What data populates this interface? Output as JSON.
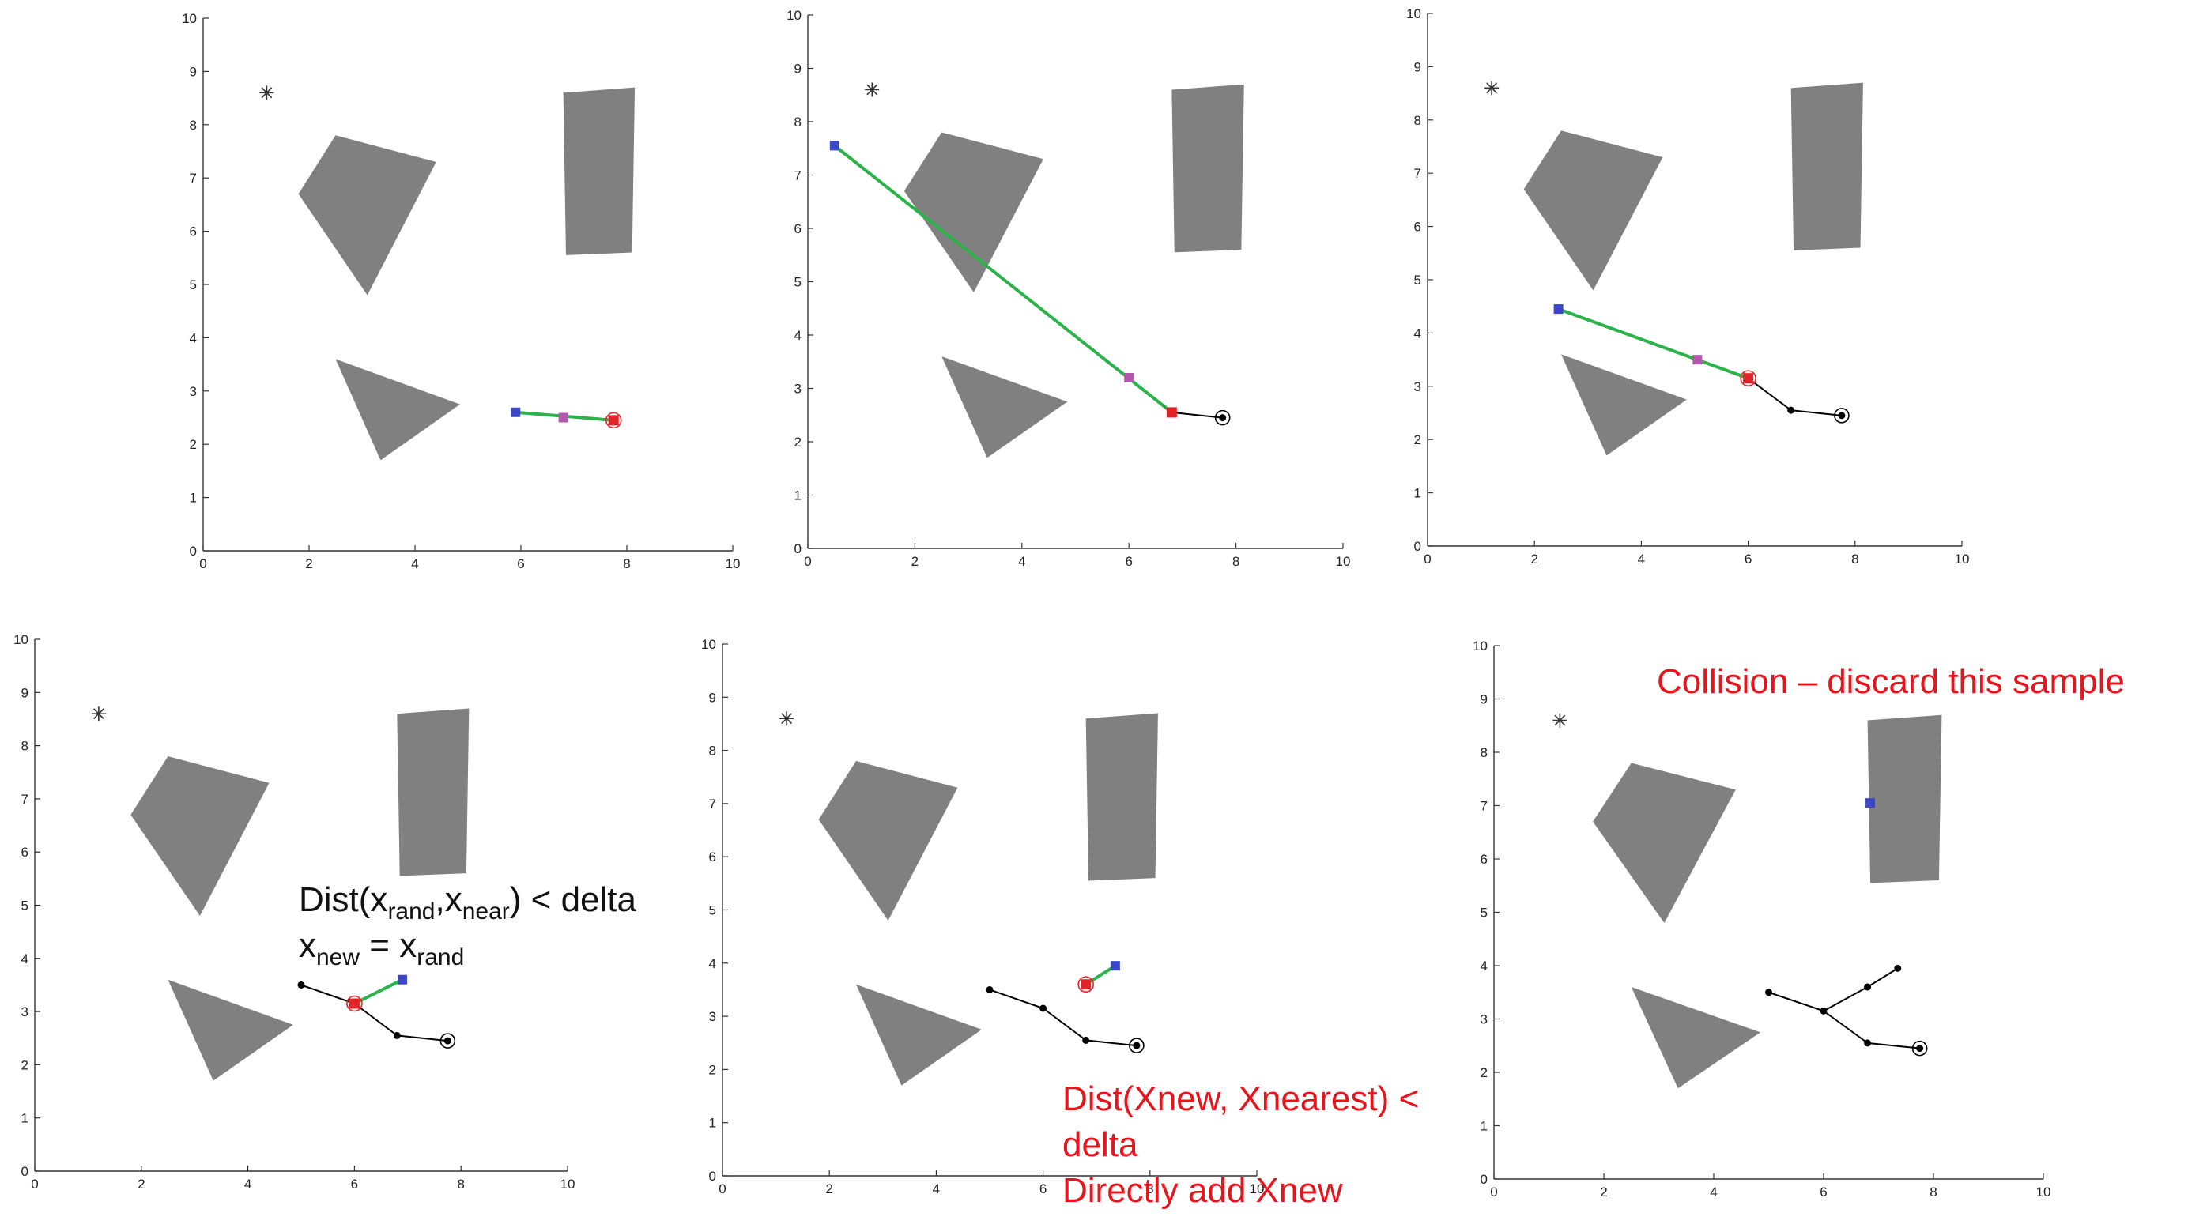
{
  "colors": {
    "obstacle": "#808080",
    "tree_edge": "#000000",
    "green_edge": "#2bb34a",
    "rand_marker": "#3b47c7",
    "new_marker": "#b457b0",
    "near_marker": "#e0252a",
    "note_red": "#e8141b",
    "note_black": "#111111"
  },
  "axes": {
    "xlim": [
      0,
      10
    ],
    "ylim": [
      0,
      10
    ],
    "x_ticks": [
      "0",
      "2",
      "4",
      "6",
      "8",
      "10"
    ],
    "y_ticks": [
      "0",
      "1",
      "2",
      "3",
      "4",
      "5",
      "6",
      "7",
      "8",
      "9",
      "10"
    ]
  },
  "obstacles": [
    [
      [
        2.5,
        7.8
      ],
      [
        4.4,
        7.3
      ],
      [
        3.1,
        4.8
      ],
      [
        1.8,
        6.7
      ]
    ],
    [
      [
        6.8,
        8.6
      ],
      [
        8.15,
        8.7
      ],
      [
        8.1,
        5.6
      ],
      [
        6.85,
        5.55
      ]
    ],
    [
      [
        2.5,
        3.6
      ],
      [
        4.85,
        2.75
      ],
      [
        3.35,
        1.7
      ]
    ]
  ],
  "goal_marker": [
    1.2,
    8.6
  ],
  "panels": [
    {
      "tree_edges": [],
      "tree_nodes": [],
      "start": [
        7.75,
        2.45
      ],
      "green_segments": [
        [
          [
            5.9,
            2.6
          ],
          [
            7.75,
            2.45
          ]
        ]
      ],
      "rand_point": [
        5.9,
        2.6
      ],
      "new_point": [
        6.8,
        2.5
      ],
      "near_point": [
        7.75,
        2.45
      ],
      "show_near_ring": true
    },
    {
      "tree_edges": [
        [
          [
            6.8,
            2.55
          ],
          [
            7.75,
            2.45
          ]
        ]
      ],
      "tree_nodes": [],
      "start": [
        7.75,
        2.45
      ],
      "green_segments": [
        [
          [
            0.5,
            7.55
          ],
          [
            6.8,
            2.55
          ]
        ]
      ],
      "rand_point": [
        0.5,
        7.55
      ],
      "new_point": [
        6.0,
        3.2
      ],
      "near_point": [
        6.8,
        2.55
      ],
      "show_near_ring": false
    },
    {
      "tree_edges": [
        [
          [
            6.0,
            3.15
          ],
          [
            6.8,
            2.55
          ]
        ],
        [
          [
            6.8,
            2.55
          ],
          [
            7.75,
            2.45
          ]
        ]
      ],
      "tree_nodes": [
        [
          6.8,
          2.55
        ]
      ],
      "start": [
        7.75,
        2.45
      ],
      "green_segments": [
        [
          [
            2.45,
            4.45
          ],
          [
            6.0,
            3.15
          ]
        ]
      ],
      "rand_point": [
        2.45,
        4.45
      ],
      "new_point": [
        5.05,
        3.5
      ],
      "near_point": [
        6.0,
        3.15
      ],
      "show_near_ring": true
    },
    {
      "tree_edges": [
        [
          [
            5.0,
            3.5
          ],
          [
            6.0,
            3.15
          ]
        ],
        [
          [
            6.0,
            3.15
          ],
          [
            6.8,
            2.55
          ]
        ],
        [
          [
            6.8,
            2.55
          ],
          [
            7.75,
            2.45
          ]
        ]
      ],
      "tree_nodes": [
        [
          5.0,
          3.5
        ],
        [
          6.8,
          2.55
        ]
      ],
      "start": [
        7.75,
        2.45
      ],
      "green_segments": [
        [
          [
            6.0,
            3.15
          ],
          [
            6.9,
            3.6
          ]
        ]
      ],
      "rand_point": [
        6.9,
        3.6
      ],
      "new_point": null,
      "near_point": [
        6.0,
        3.15
      ],
      "show_near_ring": true
    },
    {
      "tree_edges": [
        [
          [
            5.0,
            3.5
          ],
          [
            6.0,
            3.15
          ]
        ],
        [
          [
            6.0,
            3.15
          ],
          [
            6.8,
            2.55
          ]
        ],
        [
          [
            6.8,
            2.55
          ],
          [
            7.75,
            2.45
          ]
        ]
      ],
      "tree_nodes": [
        [
          5.0,
          3.5
        ],
        [
          6.0,
          3.15
        ],
        [
          6.8,
          2.55
        ]
      ],
      "start": [
        7.75,
        2.45
      ],
      "green_segments": [
        [
          [
            6.8,
            3.6
          ],
          [
            7.35,
            3.95
          ]
        ]
      ],
      "rand_point": [
        7.35,
        3.95
      ],
      "new_point": null,
      "near_point": [
        6.8,
        3.6
      ],
      "show_near_ring": true
    },
    {
      "tree_edges": [
        [
          [
            5.0,
            3.5
          ],
          [
            6.0,
            3.15
          ]
        ],
        [
          [
            6.0,
            3.15
          ],
          [
            6.8,
            3.6
          ]
        ],
        [
          [
            6.8,
            3.6
          ],
          [
            7.35,
            3.95
          ]
        ],
        [
          [
            6.0,
            3.15
          ],
          [
            6.8,
            2.55
          ]
        ],
        [
          [
            6.8,
            2.55
          ],
          [
            7.75,
            2.45
          ]
        ]
      ],
      "tree_nodes": [
        [
          5.0,
          3.5
        ],
        [
          6.0,
          3.15
        ],
        [
          6.8,
          3.6
        ],
        [
          7.35,
          3.95
        ],
        [
          6.8,
          2.55
        ]
      ],
      "start": [
        7.75,
        2.45
      ],
      "green_segments": [],
      "rand_point": [
        6.85,
        7.05
      ],
      "new_point": null,
      "near_point": null,
      "show_near_ring": false
    }
  ],
  "notes": {
    "p4_line1_prefix": "Dist(x",
    "p4_line1_sub1": "rand",
    "p4_line1_mid": ",x",
    "p4_line1_sub2": "near",
    "p4_line1_suffix": ") < delta",
    "p4_line2_a": "x",
    "p4_line2_sub_a": "new",
    "p4_line2_eq": " = x",
    "p4_line2_sub_b": "rand",
    "p5_line1": "Dist(Xnew, Xnearest) <",
    "p5_line2": "delta",
    "p5_line3": "Directly add Xnew",
    "p6_line1": "Collision – discard this sample"
  }
}
